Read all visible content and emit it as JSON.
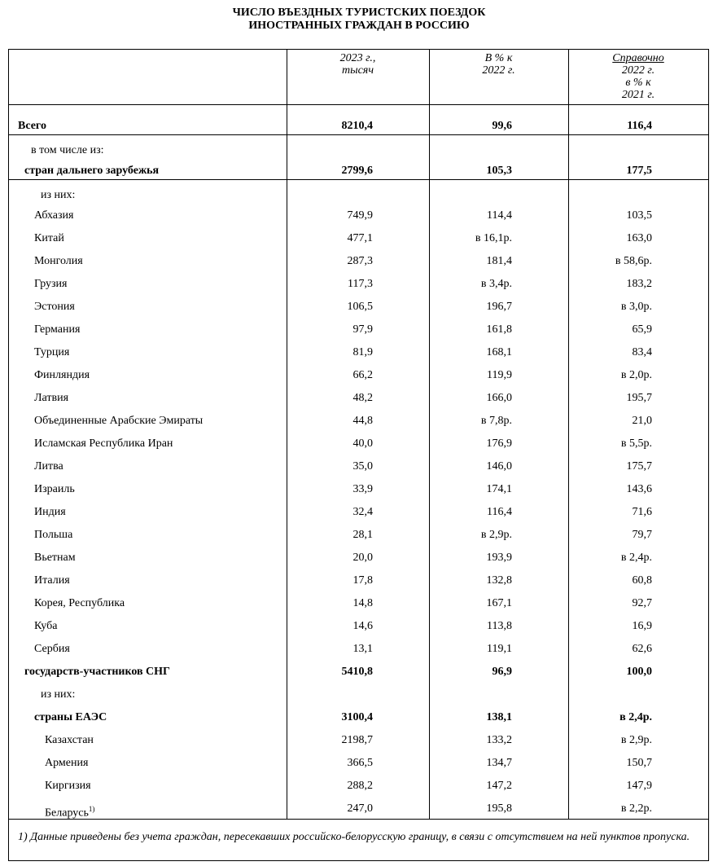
{
  "header": {
    "title": [
      "ЧИСЛО ВЪЕЗДНЫХ ТУРИСТСКИХ ПОЕЗДОК",
      "ИНОСТРАННЫХ ГРАЖДАН В РОССИЮ"
    ]
  },
  "table": {
    "columns": [
      "2023 г.,\nтысяч",
      "В % к\n2022 г.",
      [
        "Справочно",
        "2022 г.\nв % к\n2021 г."
      ]
    ],
    "rows": [
      [
        "Всего",
        "8210,4",
        "99,6",
        "116,4"
      ],
      [
        "в том числе из:"
      ],
      [
        "стран дальнего зарубежья",
        "2799,6",
        "105,3",
        "177,5"
      ],
      [
        "из них:"
      ],
      [
        "Абхазия",
        "749,9",
        "114,4",
        "103,5"
      ],
      [
        "Китай",
        "477,1",
        "в 16,1р.",
        "163,0"
      ],
      [
        "Монголия",
        "287,3",
        "181,4",
        "в 58,6р."
      ],
      [
        "Грузия",
        "117,3",
        "в 3,4р.",
        "183,2"
      ],
      [
        "Эстония",
        "106,5",
        "196,7",
        "в 3,0р."
      ],
      [
        "Германия",
        "97,9",
        "161,8",
        "65,9"
      ],
      [
        "Турция",
        "81,9",
        "168,1",
        "83,4"
      ],
      [
        "Финляндия",
        "66,2",
        "119,9",
        "в 2,0р."
      ],
      [
        "Латвия",
        "48,2",
        "166,0",
        "195,7"
      ],
      [
        "Объединенные Арабские Эмираты",
        "44,8",
        "в 7,8р.",
        "21,0"
      ],
      [
        "Исламская Республика Иран",
        "40,0",
        "176,9",
        "в 5,5р."
      ],
      [
        "Литва",
        "35,0",
        "146,0",
        "175,7"
      ],
      [
        "Израиль",
        "33,9",
        "174,1",
        "143,6"
      ],
      [
        "Индия",
        "32,4",
        "116,4",
        "71,6"
      ],
      [
        "Польша",
        "28,1",
        "в 2,9р.",
        "79,7"
      ],
      [
        "Вьетнам",
        "20,0",
        "193,9",
        "в 2,4р."
      ],
      [
        "Италия",
        "17,8",
        "132,8",
        "60,8"
      ],
      [
        "Корея, Республика",
        "14,8",
        "167,1",
        "92,7"
      ],
      [
        "Куба",
        "14,6",
        "113,8",
        "16,9"
      ],
      [
        "Сербия",
        "13,1",
        "119,1",
        "62,6"
      ],
      [
        "государств-участников СНГ",
        "5410,8",
        "96,9",
        "100,0"
      ],
      [
        "из них:"
      ],
      [
        "страны ЕАЭС",
        "3100,4",
        "138,1",
        "в 2,4р."
      ],
      [
        "Казахстан",
        "2198,7",
        "133,2",
        "в 2,9р."
      ],
      [
        "Армения",
        "366,5",
        "134,7",
        "150,7"
      ],
      [
        "Киргизия",
        "288,2",
        "147,2",
        "147,9"
      ],
      [
        "Беларусь",
        "247,0",
        "195,8",
        "в 2,2р."
      ]
    ],
    "footnote_ref": "1)"
  },
  "footnote": "1) Данные приведены без учета граждан, пересекавших российско-белорусскую границу, в связи с отсутствием на ней пунктов пропуска."
}
